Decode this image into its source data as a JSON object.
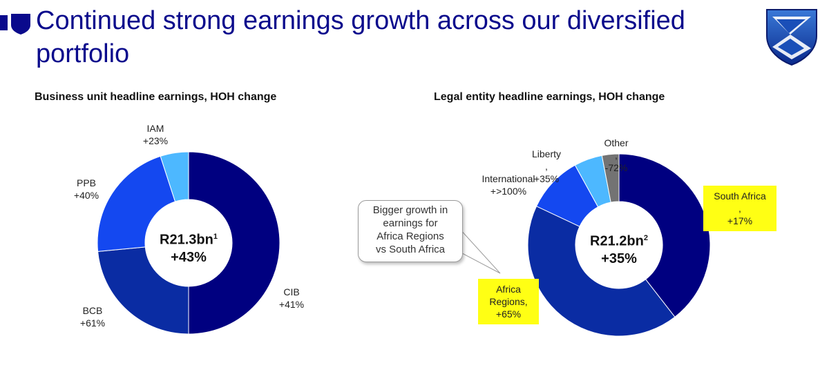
{
  "slide": {
    "title": "Continued strong earnings growth across our diversified portfolio"
  },
  "icons": {
    "brand_mark": "shield-icon",
    "logo": "standard-bank-logo-icon"
  },
  "colors": {
    "title": "#0a0a8c",
    "highlight": "#ffff14"
  },
  "callout": {
    "lines": [
      "Bigger growth in",
      "earnings for",
      "Africa Regions",
      "vs South Africa"
    ]
  },
  "chart_data": [
    {
      "type": "pie",
      "title": "Business unit headline earnings, HOH change",
      "center_value": "R21.3bn",
      "center_sup": "1",
      "center_change": "+43%",
      "slices": [
        {
          "name": "CIB",
          "change": "+41%",
          "share": 0.5,
          "color": "#000080"
        },
        {
          "name": "BCB",
          "change": "+61%",
          "share": 0.235,
          "color": "#0a2ca3"
        },
        {
          "name": "PPB",
          "change": "+40%",
          "share": 0.215,
          "color": "#1448f0"
        },
        {
          "name": "IAM",
          "change": "+23%",
          "share": 0.05,
          "color": "#4db8ff"
        }
      ]
    },
    {
      "type": "pie",
      "title": "Legal entity headline earnings, HOH change",
      "center_value": "R21.2bn",
      "center_sup": "2",
      "center_change": "+35%",
      "slices": [
        {
          "name": "South Africa",
          "change": "+17%",
          "share": 0.395,
          "color": "#000080",
          "highlighted": true
        },
        {
          "name": "Africa Regions",
          "change": "+65%",
          "share": 0.425,
          "color": "#0a2ca3",
          "highlighted": true
        },
        {
          "name": "International",
          "change": "+>100%",
          "share": 0.1,
          "color": "#1448f0"
        },
        {
          "name": "Liberty",
          "change": "+35%",
          "share": 0.05,
          "color": "#4db8ff"
        },
        {
          "name": "Other",
          "change": "-72%",
          "share": 0.03,
          "color": "#737373"
        }
      ]
    }
  ]
}
